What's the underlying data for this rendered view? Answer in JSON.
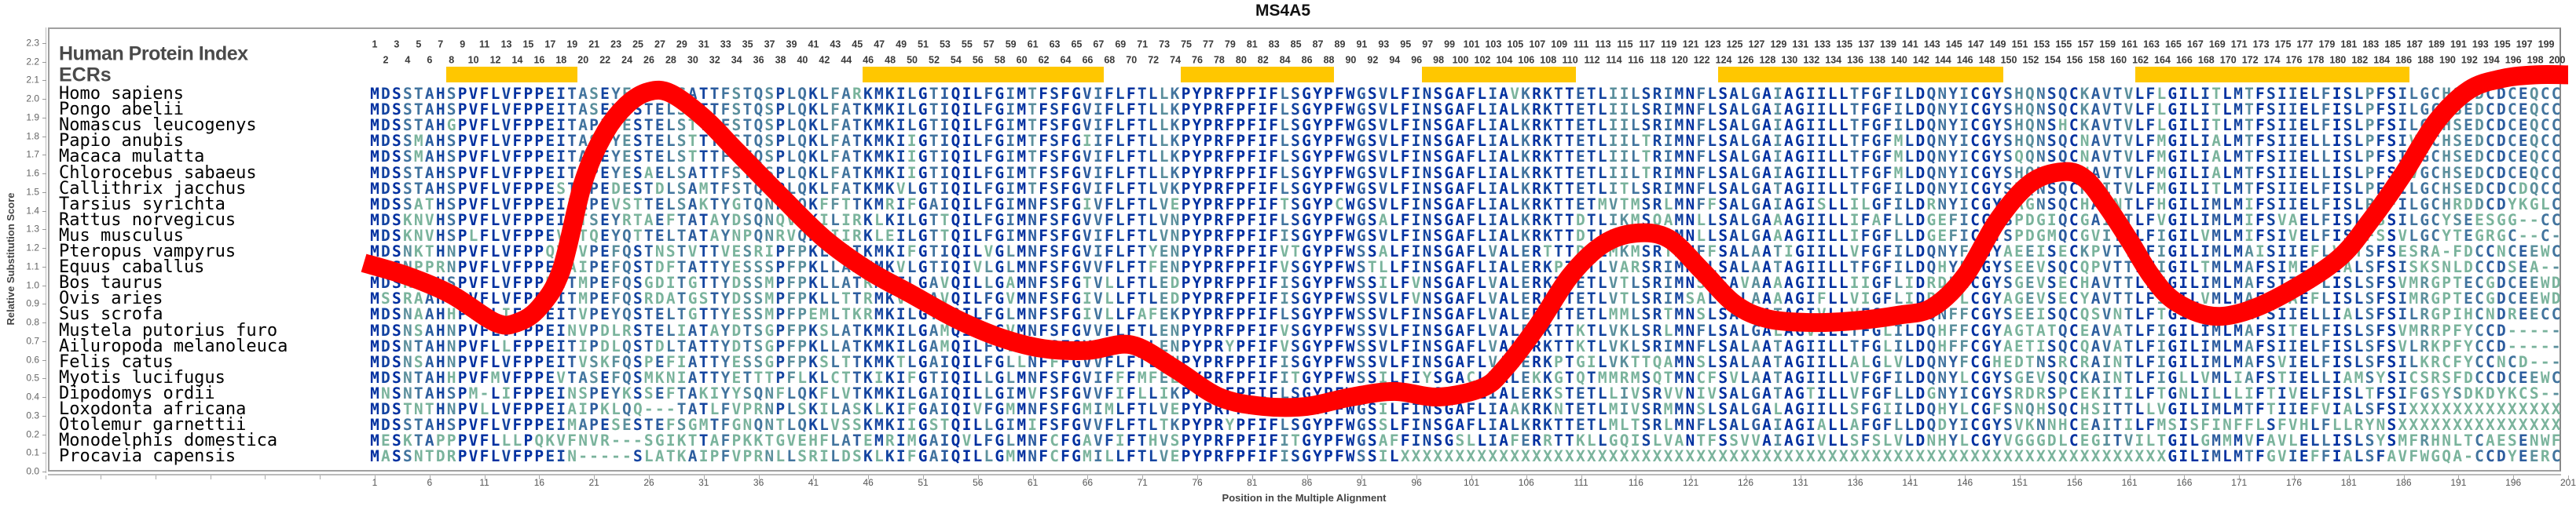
{
  "title": "MS4A5",
  "header": {
    "index_label": "Human Protein Index",
    "ecr_label": "ECRs"
  },
  "colors": {
    "curve": "#ff0000",
    "ecr_bar": "#ffc700",
    "conserved": "#0030a0",
    "variable": "#79b19c"
  },
  "chart_data": {
    "type": "line",
    "title": "MS4A5",
    "xlabel": "Position in the Multiple Alignment",
    "ylabel": "Relative Substitution Score",
    "xlim": [
      -29,
      201
    ],
    "ylim": [
      0,
      2.3
    ],
    "grid": false,
    "ytick_labels": [
      "0.0",
      "0.1",
      "0.2",
      "0.3",
      "0.4",
      "0.5",
      "0.6",
      "0.7",
      "0.8",
      "0.9",
      "1.0",
      "1.1",
      "1.2",
      "1.3",
      "1.4",
      "1.5",
      "1.6",
      "1.7",
      "1.8",
      "1.9",
      "2.0",
      "2.1",
      "2.2",
      "2.3"
    ],
    "xtick_labels": [
      "1",
      "6",
      "11",
      "16",
      "21",
      "26",
      "31",
      "36",
      "41",
      "46",
      "51",
      "56",
      "61",
      "66",
      "71",
      "76",
      "81",
      "86",
      "91",
      "96",
      "101",
      "106",
      "111",
      "116",
      "121",
      "126",
      "131",
      "136",
      "141",
      "146",
      "151",
      "156",
      "161",
      "166",
      "171",
      "176",
      "181",
      "186",
      "191",
      "196",
      "201"
    ],
    "series": [
      {
        "name": "Relative Substitution Score",
        "x": [
          0,
          4,
          8,
          12,
          14,
          16,
          18,
          20,
          22,
          24,
          26,
          28,
          31,
          34,
          38,
          42,
          46,
          50,
          54,
          58,
          62,
          66,
          70,
          74,
          78,
          82,
          86,
          90,
          94,
          98,
          102,
          104,
          107,
          110,
          113,
          116,
          119,
          122,
          125,
          128,
          132,
          136,
          140,
          143,
          146,
          149,
          152,
          155,
          157,
          159,
          161,
          163,
          165,
          168,
          171,
          175,
          180,
          183,
          186,
          189,
          192,
          195,
          198,
          201
        ],
        "y": [
          1.12,
          1.05,
          0.95,
          0.8,
          0.8,
          0.88,
          1.08,
          1.55,
          1.82,
          1.97,
          2.04,
          2.03,
          1.9,
          1.72,
          1.48,
          1.25,
          1.08,
          0.95,
          0.82,
          0.72,
          0.66,
          0.65,
          0.68,
          0.55,
          0.4,
          0.35,
          0.35,
          0.4,
          0.43,
          0.4,
          0.45,
          0.55,
          0.78,
          1.05,
          1.22,
          1.28,
          1.25,
          1.08,
          0.9,
          0.82,
          0.8,
          0.81,
          0.84,
          0.88,
          1.05,
          1.35,
          1.55,
          1.61,
          1.57,
          1.42,
          1.24,
          1.05,
          0.92,
          0.84,
          0.85,
          0.95,
          1.14,
          1.35,
          1.6,
          1.88,
          2.05,
          2.11,
          2.13,
          2.13
        ]
      }
    ],
    "ecrs": [
      [
        8,
        19
      ],
      [
        46,
        67
      ],
      [
        75,
        88
      ],
      [
        97,
        110
      ],
      [
        124,
        149
      ],
      [
        162,
        186
      ]
    ],
    "alignment": {
      "length": 200,
      "rows": [
        {
          "species": "Homo sapiens",
          "sequence": "MDSSTAHSPVFLVFPPEITASEYESTELSATTFSTQSPLQKLFARKMKILGTIQILFGIMTFSFGVIFLFTLLKPYPRFPFIFLSGYPFWGSVLFINSGAFLIAVKRKTTETLIILSRIMNFLSALGAIAGIILLTFGFILDQNYICGYSHQNSQCKAVTVLFLGILITLMTFSIIELFISLPFSILGCHSEDCDCEQCC"
        },
        {
          "species": "Pongo abelii",
          "sequence": "MDSSTAHSPVFLVFPPEITASEYESTELSTTTFSTQSPLQKLFATKMKILGTIQILFGIMTFSFGVIFLFTLLKPYPRFPFIFLSGYPFWGSVLFINSGAFLIALKRKTTETLIILSRIMNFLSALGAIAGIILLTFGFILDQNYICGYSHQNSQCKAVTVLFLGILITLMTFSIIELFISLPFSILGCHSEDCDCEQCC"
        },
        {
          "species": "Nomascus leucogenys",
          "sequence": "MDSSTAHGPVFLVFPPEITAPEYESTELSTTTFSTQSPLQKLFATKMKILGTIQILFGIMTFSFGVIFLFTLLKPYPRFPFIFLSGYPFWGSVLFINSGAFLIALKRKTTETLIILSRIMNFLSALGAIAGIILLTFGFILDQNYICGYSHQNSHCKAVTVLFLGILITLMTFSIIELFISLPFSILGCHSEDCDCEQCC"
        },
        {
          "species": "Papio anubis",
          "sequence": "MDSSMAHSPVFLVFPPEITASEYESTELSTTTFSTQSPLQKLFATKMKIIGTIQILFGIMTFSFGIIFLFTLLKPYPRFPFIFLSGYPFWGSVLFINSGAFLIALKRKTTETLIILTRIMNFLSALGAIAGIILLTFGFMLDQNYICGYSHQNSQCNAVTVLFMGILIALMTFSIIELLISLPFSIVGCHSEDCDCEQCC"
        },
        {
          "species": "Macaca mulatta",
          "sequence": "MDSSMAHSPVFLVFPPEITASEYESTELSTTTFSTQSPLQKLFATKMKIIGTIQILFGIMTFSFGVIFLFTLLKPYPRFPFIFLSGYPFWGSVLFINSGAFLIALKRKTTETLIILTRIMNFLSALGAIAGIILLTFGFMLDQNYICGYSQQNSQCNAVTVLFMGILIALMTFSIIELLISLPFSIVGCHSEDCDCEQCC"
        },
        {
          "species": "Chlorocebus sabaeus",
          "sequence": "MDSSTAHSPVFLVFPPEITAPEYESAELSATTFSTQSPLQKLFATKMKIIGTIQILFGIMTFSFGVIFLFTLLKPYPRFPFIFLSGYPFWGSVLFINSGAFLIALKRKTTETLIILTRIMNFLSALGAIAGIILLTFGFMLDQNYICGYSHQNSQCNAVTVLFMGILIALMTFSIIELLISLPFSIVGCHSEDCDCEQCC"
        },
        {
          "species": "Callithrix jacchus",
          "sequence": "MDSSTAHSPVFLVFPPESTAPEDESTDLSAMTFSTQSPLQKLFATKMKVLGTIQILFGIMTFSFGVIFLFTLVKPYPRFPFIFLSGYPFWGSVLFINSGAFLIALKRKTTETLITLSRIMNFLSALGATAGIILLTFGFILDQNYICGYSHQNSQCKAITVLFMGILITLMTFSIIELFISLPFSILGCHSEDCDCDQCC"
        },
        {
          "species": "Tarsius syrichta",
          "sequence": "MDSSATHSPVFLVFPPEIIAPEVSTTELSAKTYGTQNPLQKFFTTKMRIFGAIQILFGIMNFSFGIVFLFTLVEPYPRFPFIFTSGYPCWGSVLFINSGAFLIALKRKTTETMVTMSRLMNFFSALGAIAGISLLILGFILDRNYICGYLAGNSQCHANNTLFHGILIMLMIFSIIELFISLPFFILGCHRDDCDYKGLC"
        },
        {
          "species": "Rattus norvegicus",
          "sequence": "MDSKNVHSPVFLVFPPEIITSEYRTAEFTATAYDSQNQVQKILIRKLKILGTTQILFGIMNFSFGVVFLFTLVNPYPRFPFIFLSGYPFWGSALFINSGAFLIALKRKTTDTLIKMSQAMNLLSALGAAAGIILLIFAFLLDGEFICGYSPDGIQCGAITTLFVGILIMLMIFSVAELFISLFSSILGCYSEESGG--CC"
        },
        {
          "species": "Mus musculus",
          "sequence": "MDSKNVHSPLFLVFPPEVTTQEYQTTELTATAYNPQNRVQKIIIRKLEILGTTQILFGIMNFSFGVIFLFTLVNPYPRFPFIFISGYPFWGSVLFINSGAFLIALKRKTTDTLIKMSRAMNLLSALGAAAGIILLIFGFLLDGEFICGYSPDGMQCGVITILFIGILVMLMIFSIVELFISLFSSVLGCYTEGRGC--C-"
        },
        {
          "species": "Pteropus vampyrus",
          "sequence": "MDSNKTHNPVFLVFPPQVTVPEFQSTNSTVTTVESRIPFPKLLSTKMKIFGTIQILVGLMNFSFGVIFLFTYENPYPRFPFIFVTGYPFWSSALFINSGAFLVALERTTTDVLMKMSRTMNFFSALAATIGIILLVFGFILDQNYFCGYAEEISECKPVTTLFIGILIMLMAISIIEFLVSTSFSESRA-FDCCNCEEWC"
        },
        {
          "species": "Equus caballus",
          "sequence": "MDSNPPRNPVFLVFPPEIAIPEFQSTDFTATTYESSSPFPKLLAAKMKVLGTIQIVLGLMNFSFGVVFLFTFENPYPRFPFIFVSGYPFWSTLLFINSGAFLIALERKPTETLVARSRIMNFLSALAATAGIILLTFGFILDQHYFCGYSEEVSQCQPVTTLFIGILTMLMAFSIMELLIALSFSISKSNLDCCDSEA--"
        },
        {
          "species": "Bos taurus",
          "sequence": "MDSRAAHSPVFLVFPPDITMPEFQSGDITGTTYDSSMPFPKLLATRMKILGAVQILLGAMNFSFGTVLLFTLEDPYPRFPFIFISGYPFWSSILFVNSGAFLVALERKTTETLVTLSRIMNSLSAVAAAAGIILLIIGFLIDRDFLCGYSGEVSECHAVTTLFIGILIMLMAFSIIEFLISLSFSVMRGPTECGDCEEWD"
        },
        {
          "species": "Ovis aries",
          "sequence": "MSSRAAHSPVFLVFPPDITMPEFQSRDATGSTYDSSMPFPKLLTTRMKVLGAVQILFGVMNFSFGIVLLFTLEDPYPRFPFIFISGYPFWSSVLFVNSGAFLVALERKTTETLVTLSRIMSALSALAAAAGIFLLVIGFLIDRDFLCGYAGEVSECYAVTTLFIGILVMLMAFSIAEFLISLSFSIMRGPTECGDCEEWD"
        },
        {
          "species": "Sus scrofa",
          "sequence": "MDSNAAHHPVFLIFPPEITVPEYQSTELTGTTYESSMPFPEMLTKRMKILGTIQILFGLMNFSFGIVLLFAFEKPYPRFPFIFLSGYPFWSSVLFINSGAFLVALERKTTETLMMLSRTMNSLSALAATAGIVLLVFGFILDQNFFCGYSEEISQCQSVNTLFTGILIMLMAFSIIELLIALSFSILRGPIHCNDREECC"
        },
        {
          "species": "Mustela putorius furo",
          "sequence": "MDSNSAHNPVFLVFPPEINVPDLRSTELIATAYDTSGPFPKSLATKMKILGAMQILFGVMNFSFGVVFLFTLENPYPRFPFIFVSGYPFWSSVLFINSGAFLVALERKTTKTLVKLSRLMNFLSALGALAGVILLTFGLILDQHFFCGYAGTATQCEAVATLFIGILIMLMAFSITELFISLSFSVMRRPFYCCD-----"
        },
        {
          "species": "Ailuropoda melanoleuca",
          "sequence": "MDSNTAHNPVFLLFPPEITIPDLQSTDLTATTYDTSGPFPKLLATKMKILGAMQILFGVMNFSFGVVFLFTLENPYPRYPFIFVSGYPFWSSVLFINSGAFLVALERKTTKTLVKLSRIMNFLSALAATAGIILLTFGLILDQHFFCGYAETISQCQAVATLFIGILIMLMAFSIIELFISLSFSVLRKPFYCCD-----"
        },
        {
          "species": "Felis catus",
          "sequence": "MDSNSAHNPVFLVFPPEITVSKFQSPEFIATTYESSGPFPKSLTTKMKTLGAIQILFGLLNFFFGVVFLFTLENPYPRFPFIFISGYPFWSSVLFINSGAFLVALERKPTGILVKTTQAMNSLSALAATAGIILLALGLVLDQNYFCGHEDTNSRCRAINTLFIGILIMLMAFSVIELFISLSFSILKRCFYCCNCD---"
        },
        {
          "species": "Myotis lucifugus",
          "sequence": "MDSNTAHHPVFMVFPPEVTASEFQSMKNIATTYETTTPFLKLCTTKIKIFGTIQILLGLMNFSFGVIFFFMFEEPYPRFPFIFITGYPFWSSILFIYSGACLVALEKKGTQTMMRMSQTMNCFSVLAATAGIILLVFGFILDQNYLCGYSGEVSQCKAINTLFIGLLVMLIAFSTIELLIAMSYSICSRSFDCCDCEEWC"
        },
        {
          "species": "Dipodomys ordii",
          "sequence": "MNSNTAHSPM-LIFPPEINSPEYKSSEFTAKIYYSQNFLQKFLVTKMKILGAIQILLGIMVFSFGVVFIFLLIKPYPRFPFIFLSGYPFWGSALFIISGAFLIALERKSTETLLIVSRVVNIVSALGATAGTILLVFGFLLDGNYICGYSRDRSPCEKITILFTGNLILLLIFTIVELFISLTFSIFGSYSDKDYKCS--"
        },
        {
          "species": "Loxodonta africana",
          "sequence": "MDSTNTHNPVLLVFPPEIAIPKLQQ---TATLFVPRNPLSKILASKLKIFGAIQIVFGMMNFSFGMIMLFTLVEPYPRFPFIFISGYPFWGSILFINSGAFLIAAKRKNTETLMIVSRMMNSLSALGALAGIILLSFGIILDQHYLCGFSNQHSQCHSITTLLVGILIMLMTFTIIEFVIALSFSIXXXXXXXXXXXXXX"
        },
        {
          "species": "Otolemur garnettii",
          "sequence": "MDSSTAHSPVFLVFPPEIMAPESESTEFSGMTFGNQNTLQKLVSSKMKIIGSTQILLGIMIFSFGVVFLFTLTKPYPRYPFIFLSGYPFWGSSLFINSGAFLIALKRKTTETLMLTSRLMNFLSALGAIAGIALLAFGFLLDQDYICGYSVKNNHCEAITILFMSISFINFFLSFVHLFLLRYNSXXXXXXXXXXXXXXX"
        },
        {
          "species": "Monodelphis domestica",
          "sequence": "MESKTAPPPVFLLLPQKVFNVR---SGIKTTAFPKKTGVEHFLATEMRIMGAIQVLFGLMNFCFGAVFIFTHVSPYPRFPFIFITGYPFWGSAFFINSGSLLIAFERRTTKLLGQISLVANTFSSVVAIAGIVLLSFSLVLDNHYLCGYVGGGDLCEGITVILTGILGMMMVFAVLELLISLSYSMFRHNLTCAESENWF"
        },
        {
          "species": "Procavia capensis",
          "sequence": "MASSNTDRPVFLVFPPEIN-----SLATKAIPFVPRNLLSRILDSKLKIFGAIQILLGMMNFCFGMILLFTLVEPYPRFPFIFISGYPFWSSILXXXXXXXXXXXXXXXXXXXXXXXXXXXXXXXXXXXXXXXXXXXXXXXXXXXXXXXXXXXXXXXXXXXXXXGILIMLMTFGVIEFFIALSFAVFWGQA-CCDYEERC"
        }
      ]
    }
  }
}
